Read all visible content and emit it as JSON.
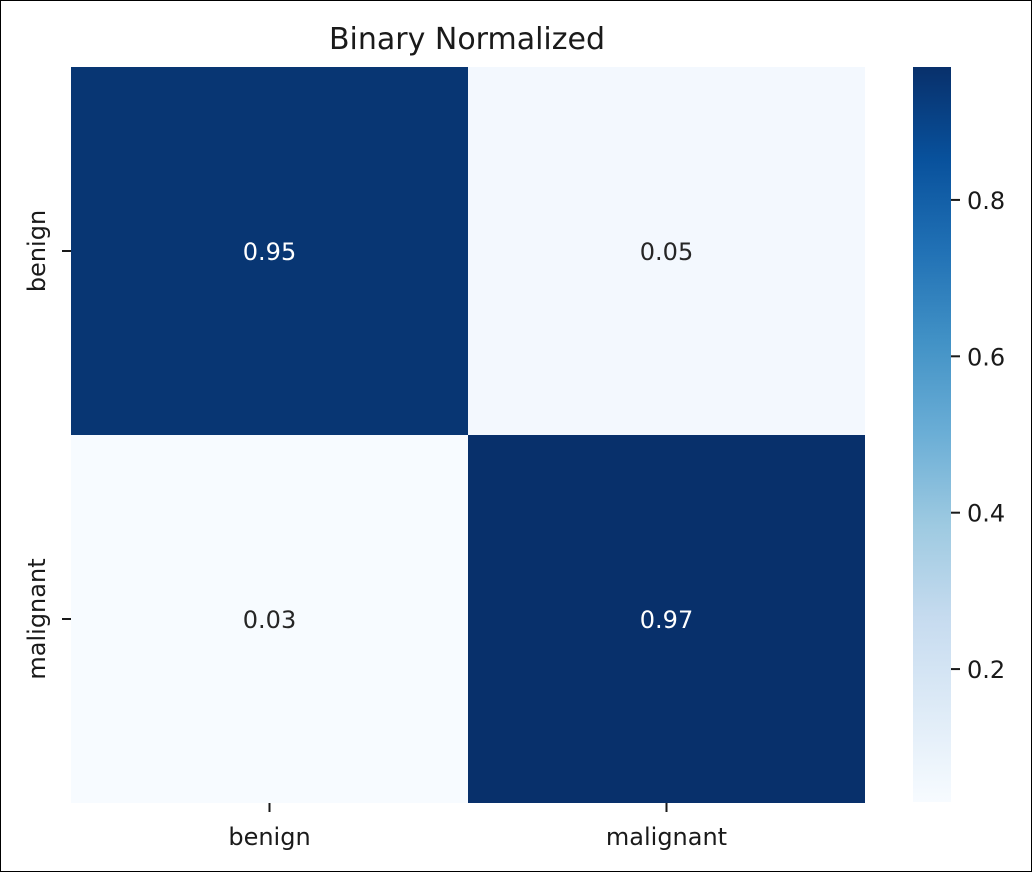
{
  "chart_data": {
    "type": "heatmap",
    "title": "Binary Normalized",
    "x_categories": [
      "benign",
      "malignant"
    ],
    "y_categories": [
      "benign",
      "malignant"
    ],
    "values": [
      [
        0.95,
        0.05
      ],
      [
        0.03,
        0.97
      ]
    ],
    "cell_labels": [
      [
        "0.95",
        "0.05"
      ],
      [
        "0.03",
        "0.97"
      ]
    ],
    "xlabel": "",
    "ylabel": "",
    "colorbar": {
      "range": [
        0.03,
        0.97
      ],
      "ticks": [
        0.2,
        0.4,
        0.6,
        0.8
      ],
      "tick_labels": [
        "0.2",
        "0.4",
        "0.6",
        "0.8"
      ]
    },
    "colormap": "Blues",
    "colors": {
      "low": "#f7fbff",
      "high": "#08306b"
    }
  }
}
